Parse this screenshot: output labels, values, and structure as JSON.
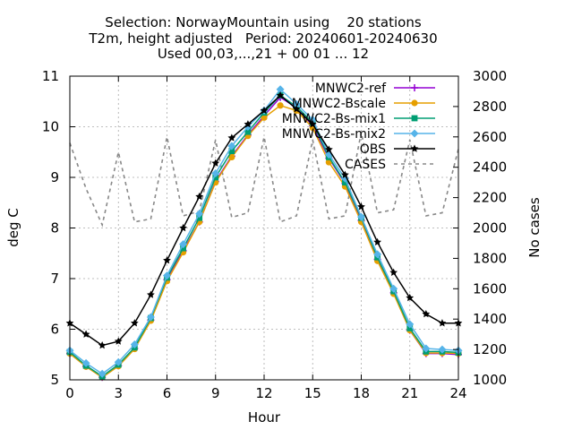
{
  "chart_data": {
    "type": "line",
    "title_lines": [
      "Selection: NorwayMountain using    20 stations",
      "T2m, height adjusted   Period: 20240601-20240630",
      "Used 00,03,...,21 + 00 01 ... 12"
    ],
    "xlabel": "Hour",
    "ylabel": "deg C",
    "y2label": "No cases",
    "xlim": [
      0,
      24
    ],
    "ylim": [
      5,
      11
    ],
    "y2lim": [
      1000,
      3000
    ],
    "xticks": [
      0,
      3,
      6,
      9,
      12,
      15,
      18,
      21,
      24
    ],
    "yticks": [
      5,
      6,
      7,
      8,
      9,
      10,
      11
    ],
    "y2ticks": [
      1000,
      1200,
      1400,
      1600,
      1800,
      2000,
      2200,
      2400,
      2600,
      2800,
      3000
    ],
    "grid": true,
    "legend_position": "top-right",
    "x": [
      0,
      1,
      2,
      3,
      4,
      5,
      6,
      7,
      8,
      9,
      10,
      11,
      12,
      13,
      14,
      15,
      16,
      17,
      18,
      19,
      20,
      21,
      22,
      23,
      24
    ],
    "series": [
      {
        "name": "MNWC2-ref",
        "color": "#9400d3",
        "marker": "plus",
        "axis": "y",
        "values": [
          5.52,
          5.27,
          5.05,
          5.28,
          5.62,
          6.18,
          6.98,
          7.55,
          8.12,
          8.92,
          9.42,
          9.84,
          10.22,
          10.58,
          10.38,
          10.02,
          9.38,
          8.88,
          8.15,
          7.38,
          6.72,
          5.98,
          5.52,
          5.52,
          5.5
        ]
      },
      {
        "name": "MNWC2-Bscale",
        "color": "#e69f00",
        "marker": "circle",
        "axis": "y",
        "values": [
          5.52,
          5.26,
          5.05,
          5.27,
          5.61,
          6.17,
          6.95,
          7.52,
          8.12,
          8.9,
          9.4,
          9.82,
          10.18,
          10.42,
          10.32,
          9.98,
          9.3,
          8.82,
          8.12,
          7.35,
          6.7,
          5.98,
          5.53,
          5.53,
          5.52
        ]
      },
      {
        "name": "MNWC2-Bs-mix1",
        "color": "#009e73",
        "marker": "square",
        "axis": "y",
        "values": [
          5.55,
          5.28,
          5.07,
          5.3,
          5.64,
          6.22,
          7.02,
          7.6,
          8.2,
          9.0,
          9.52,
          9.9,
          10.28,
          10.62,
          10.4,
          10.08,
          9.4,
          8.9,
          8.2,
          7.42,
          6.75,
          6.02,
          5.56,
          5.56,
          5.54
        ]
      },
      {
        "name": "MNWC2-Bs-mix2",
        "color": "#56b4e9",
        "marker": "diamond",
        "axis": "y",
        "values": [
          5.58,
          5.33,
          5.12,
          5.35,
          5.7,
          6.24,
          7.06,
          7.68,
          8.28,
          9.08,
          9.62,
          10.0,
          10.32,
          10.74,
          10.45,
          10.14,
          9.45,
          8.98,
          8.22,
          7.48,
          6.8,
          6.1,
          5.62,
          5.6,
          5.58
        ]
      },
      {
        "name": "OBS",
        "color": "#000000",
        "marker": "star",
        "axis": "y",
        "values": [
          6.12,
          5.9,
          5.68,
          5.76,
          6.12,
          6.68,
          7.36,
          8.0,
          8.62,
          9.28,
          9.78,
          10.05,
          10.32,
          10.62,
          10.35,
          10.05,
          9.55,
          9.05,
          8.42,
          7.72,
          7.12,
          6.62,
          6.3,
          6.12,
          6.12
        ]
      },
      {
        "name": "CASES",
        "color": "#888888",
        "marker": "none",
        "dashed": true,
        "axis": "y2",
        "values": [
          2560,
          2260,
          2020,
          2500,
          2040,
          2060,
          2600,
          2080,
          2110,
          2580,
          2070,
          2100,
          2600,
          2040,
          2080,
          2580,
          2060,
          2080,
          2630,
          2100,
          2120,
          2580,
          2080,
          2100,
          2520
        ]
      }
    ]
  }
}
